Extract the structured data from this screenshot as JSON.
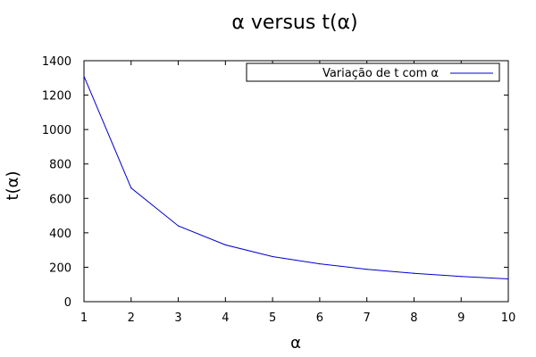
{
  "chart_data": {
    "type": "line",
    "title": "α versus t(α)",
    "xlabel": "α",
    "ylabel": "t(α)",
    "xlim": [
      1,
      10
    ],
    "ylim": [
      0,
      1400
    ],
    "x_ticks": [
      "1",
      "2",
      "3",
      "4",
      "5",
      "6",
      "7",
      "8",
      "9",
      "10"
    ],
    "y_ticks": [
      "0",
      "200",
      "400",
      "600",
      "800",
      "1000",
      "1200",
      "1400"
    ],
    "grid": false,
    "legend_position": "top-right",
    "series": [
      {
        "name": "Variação de t com α",
        "color": "#0000cc",
        "x": [
          1,
          2,
          3,
          4,
          5,
          6,
          7,
          8,
          9,
          10
        ],
        "y": [
          1310,
          660,
          440,
          330,
          262,
          220,
          188,
          165,
          146,
          132
        ]
      }
    ]
  }
}
